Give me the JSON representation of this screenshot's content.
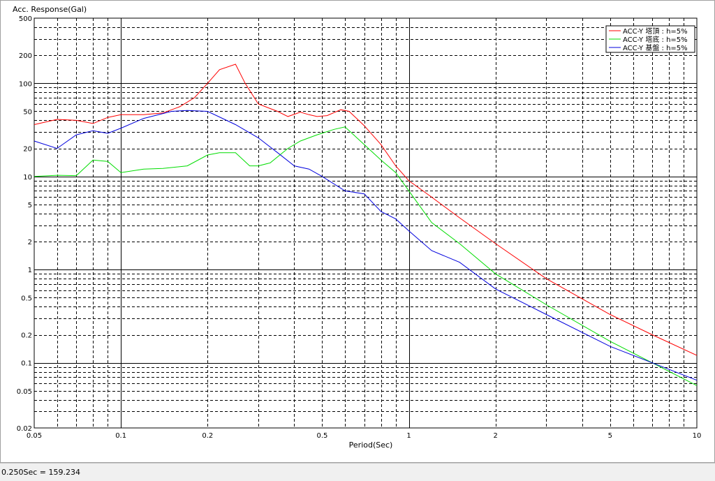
{
  "chart_data": {
    "type": "line",
    "ylabel": "Acc. Response(Gal)",
    "xlabel": "Period(Sec)",
    "x_scale": "log",
    "y_scale": "log",
    "xlim": [
      0.05,
      10
    ],
    "ylim": [
      0.02,
      500
    ],
    "grid": true,
    "legend_position": "top-right",
    "x_ticks": [
      {
        "value": 0.05,
        "label": "0.05"
      },
      {
        "value": 0.1,
        "label": "0.1"
      },
      {
        "value": 0.2,
        "label": "0.2"
      },
      {
        "value": 0.5,
        "label": "0.5"
      },
      {
        "value": 1,
        "label": "1"
      },
      {
        "value": 2,
        "label": "2"
      },
      {
        "value": 5,
        "label": "5"
      },
      {
        "value": 10,
        "label": "10"
      }
    ],
    "y_ticks": [
      {
        "value": 0.02,
        "label": "0.02"
      },
      {
        "value": 0.05,
        "label": "0.05"
      },
      {
        "value": 0.1,
        "label": "0.1"
      },
      {
        "value": 0.2,
        "label": "0.2"
      },
      {
        "value": 0.5,
        "label": "0.5"
      },
      {
        "value": 1,
        "label": "1"
      },
      {
        "value": 2,
        "label": "2"
      },
      {
        "value": 5,
        "label": "5"
      },
      {
        "value": 10,
        "label": "10"
      },
      {
        "value": 20,
        "label": "20"
      },
      {
        "value": 50,
        "label": "50"
      },
      {
        "value": 100,
        "label": "100"
      },
      {
        "value": 200,
        "label": "200"
      },
      {
        "value": 500,
        "label": "500"
      }
    ],
    "series": [
      {
        "name": "ACC-Y 塔頂 : h=5%",
        "color": "#ff0000",
        "points": [
          [
            0.05,
            36
          ],
          [
            0.06,
            41
          ],
          [
            0.07,
            40
          ],
          [
            0.08,
            37
          ],
          [
            0.09,
            43
          ],
          [
            0.1,
            46
          ],
          [
            0.12,
            46
          ],
          [
            0.14,
            48
          ],
          [
            0.16,
            56
          ],
          [
            0.18,
            70
          ],
          [
            0.2,
            100
          ],
          [
            0.22,
            140
          ],
          [
            0.25,
            160
          ],
          [
            0.27,
            100
          ],
          [
            0.3,
            60
          ],
          [
            0.35,
            50
          ],
          [
            0.38,
            44
          ],
          [
            0.42,
            49
          ],
          [
            0.45,
            46
          ],
          [
            0.48,
            44
          ],
          [
            0.52,
            45
          ],
          [
            0.58,
            52
          ],
          [
            0.62,
            50
          ],
          [
            0.7,
            35
          ],
          [
            0.8,
            22
          ],
          [
            0.9,
            13
          ],
          [
            1.0,
            9
          ],
          [
            1.2,
            6
          ],
          [
            1.5,
            3.6
          ],
          [
            2.0,
            1.9
          ],
          [
            3.0,
            0.8
          ],
          [
            5.0,
            0.33
          ],
          [
            7.0,
            0.2
          ],
          [
            10.0,
            0.12
          ]
        ]
      },
      {
        "name": "ACC-Y 塔底 : h=5%",
        "color": "#00dd00",
        "points": [
          [
            0.05,
            10
          ],
          [
            0.06,
            10.3
          ],
          [
            0.07,
            10.2
          ],
          [
            0.08,
            15
          ],
          [
            0.09,
            14.5
          ],
          [
            0.1,
            11
          ],
          [
            0.12,
            12
          ],
          [
            0.14,
            12.2
          ],
          [
            0.17,
            13
          ],
          [
            0.2,
            17
          ],
          [
            0.22,
            18
          ],
          [
            0.25,
            18
          ],
          [
            0.28,
            13
          ],
          [
            0.3,
            13
          ],
          [
            0.33,
            14
          ],
          [
            0.38,
            20
          ],
          [
            0.42,
            24
          ],
          [
            0.48,
            28
          ],
          [
            0.55,
            32
          ],
          [
            0.6,
            34
          ],
          [
            0.7,
            22
          ],
          [
            0.8,
            15
          ],
          [
            0.9,
            11
          ],
          [
            1.0,
            7
          ],
          [
            1.2,
            3.2
          ],
          [
            1.5,
            1.9
          ],
          [
            2.0,
            0.9
          ],
          [
            3.0,
            0.42
          ],
          [
            5.0,
            0.17
          ],
          [
            7.0,
            0.1
          ],
          [
            10.0,
            0.057
          ]
        ]
      },
      {
        "name": "ACC-Y 基盤 : h=5%",
        "color": "#0000dd",
        "points": [
          [
            0.05,
            24
          ],
          [
            0.06,
            20
          ],
          [
            0.07,
            28
          ],
          [
            0.08,
            31
          ],
          [
            0.09,
            29
          ],
          [
            0.1,
            33
          ],
          [
            0.12,
            42
          ],
          [
            0.15,
            50
          ],
          [
            0.17,
            51
          ],
          [
            0.2,
            50
          ],
          [
            0.25,
            36
          ],
          [
            0.3,
            26
          ],
          [
            0.35,
            18
          ],
          [
            0.4,
            13
          ],
          [
            0.45,
            12
          ],
          [
            0.5,
            10
          ],
          [
            0.6,
            7
          ],
          [
            0.7,
            6.5
          ],
          [
            0.8,
            4.2
          ],
          [
            0.9,
            3.5
          ],
          [
            1.0,
            2.6
          ],
          [
            1.2,
            1.6
          ],
          [
            1.5,
            1.2
          ],
          [
            2.0,
            0.62
          ],
          [
            3.0,
            0.33
          ],
          [
            5.0,
            0.15
          ],
          [
            7.0,
            0.1
          ],
          [
            10.0,
            0.065
          ]
        ]
      }
    ]
  },
  "status_bar": {
    "text": "0.250Sec = 159.234"
  }
}
